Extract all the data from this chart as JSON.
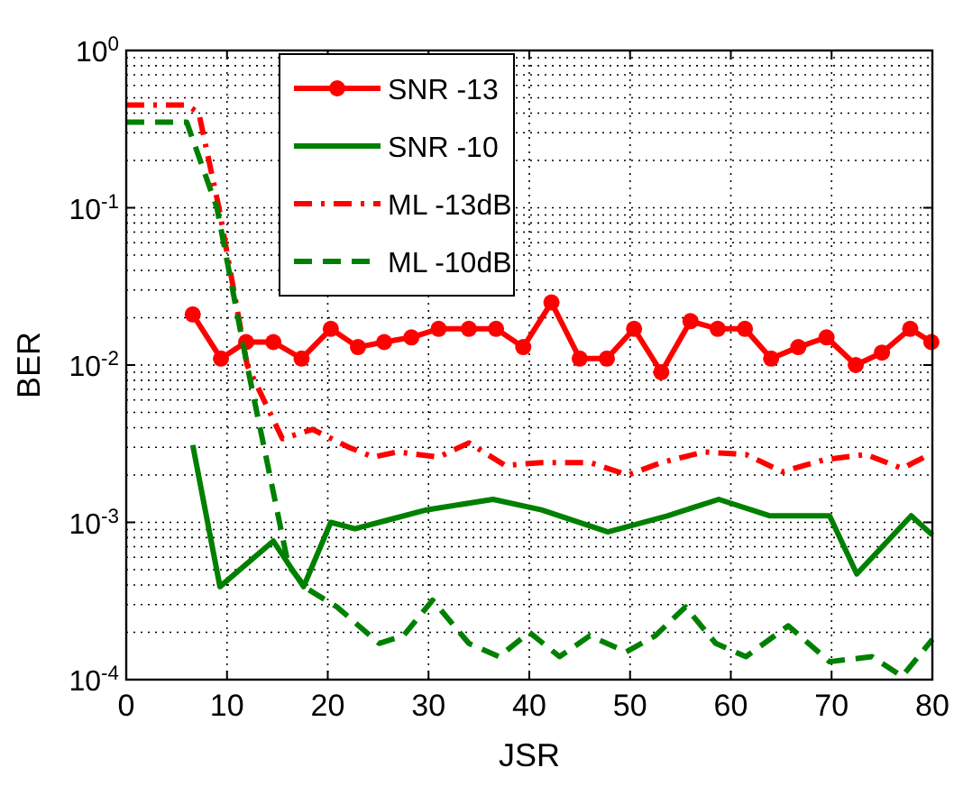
{
  "chart_data": {
    "type": "line",
    "xlabel": "JSR",
    "ylabel": "BER",
    "xlim": [
      0,
      80
    ],
    "xticks": [
      0,
      10,
      20,
      30,
      40,
      50,
      60,
      70,
      80
    ],
    "ylim": [
      0.0001,
      1
    ],
    "log": "y",
    "yticks": [
      {
        "value": 0.0001,
        "label": "10$^{-4}$"
      },
      {
        "value": 0.001,
        "label": "10$^{-3}$"
      },
      {
        "value": 0.01,
        "label": "10$^{-2}$"
      },
      {
        "value": 0.1,
        "label": "10$^{-1}$"
      },
      {
        "value": 1,
        "label": "10$^{0}$"
      }
    ],
    "grid": true,
    "legend": "top left",
    "series": [
      {
        "name": "SNR -13",
        "color": "#ff0000",
        "marker": "circle",
        "line_style": "solid",
        "x": [
          6.6,
          9.4,
          11.9,
          14.6,
          17.4,
          20.3,
          23,
          25.6,
          28.3,
          31,
          34,
          36.7,
          39.4,
          42.2,
          45,
          47.7,
          50.4,
          53.1,
          56,
          58.7,
          61.4,
          64,
          66.7,
          69.5,
          72.4,
          75,
          77.8,
          79.9
        ],
        "values": [
          0.021,
          0.011,
          0.014,
          0.014,
          0.011,
          0.017,
          0.013,
          0.014,
          0.015,
          0.017,
          0.017,
          0.017,
          0.013,
          0.025,
          0.011,
          0.011,
          0.017,
          0.009,
          0.019,
          0.017,
          0.017,
          0.011,
          0.013,
          0.015,
          0.01,
          0.012,
          0.017,
          0.014
        ]
      },
      {
        "name": "SNR -10",
        "color": "#008000",
        "marker": "none",
        "line_style": "solid",
        "x": [
          6.6,
          9.3,
          14.6,
          17.6,
          20.3,
          22.7,
          25.1,
          29.8,
          36.4,
          41.2,
          47.8,
          53.7,
          58.8,
          63.9,
          69.8,
          72.5,
          77.9,
          80
        ],
        "values": [
          0.0031,
          0.00039,
          0.00076,
          0.00039,
          0.001,
          0.00091,
          0.001,
          0.0012,
          0.0014,
          0.0012,
          0.00087,
          0.0011,
          0.0014,
          0.0011,
          0.0011,
          0.00047,
          0.0011,
          0.00083
        ]
      },
      {
        "name": "ML -13dB",
        "color": "#ff0000",
        "marker": "none",
        "line_style": "dashdot",
        "x": [
          0,
          6,
          7.2,
          9.2,
          12,
          15.5,
          18.5,
          22.1,
          24.5,
          26.9,
          31,
          34,
          37.6,
          41.2,
          46,
          49.8,
          53.1,
          57.3,
          61.5,
          65.1,
          69.3,
          73.4,
          77,
          79.7
        ],
        "values": [
          0.45,
          0.45,
          0.4,
          0.1,
          0.01,
          0.0034,
          0.0039,
          0.003,
          0.0026,
          0.0028,
          0.0026,
          0.0032,
          0.0023,
          0.0024,
          0.0024,
          0.002,
          0.0024,
          0.0028,
          0.0027,
          0.0021,
          0.0025,
          0.0027,
          0.0022,
          0.0027
        ]
      },
      {
        "name": "ML -10dB",
        "color": "#008000",
        "marker": "none",
        "line_style": "dashed",
        "x": [
          0,
          6,
          9,
          11.9,
          16.1,
          17.9,
          20.9,
          25.1,
          27.5,
          30.4,
          34,
          37,
          40,
          43,
          46,
          49.6,
          52.5,
          55.5,
          58.5,
          61.5,
          65.7,
          69.8,
          74,
          77,
          80
        ],
        "values": [
          0.35,
          0.35,
          0.1,
          0.0107,
          0.00053,
          0.00038,
          0.00029,
          0.00017,
          0.00019,
          0.00032,
          0.00017,
          0.00014,
          0.0002,
          0.00014,
          0.00019,
          0.00015,
          0.00019,
          0.00029,
          0.00017,
          0.00014,
          0.00022,
          0.00013,
          0.00014,
          0.000105,
          0.00018
        ]
      }
    ]
  }
}
